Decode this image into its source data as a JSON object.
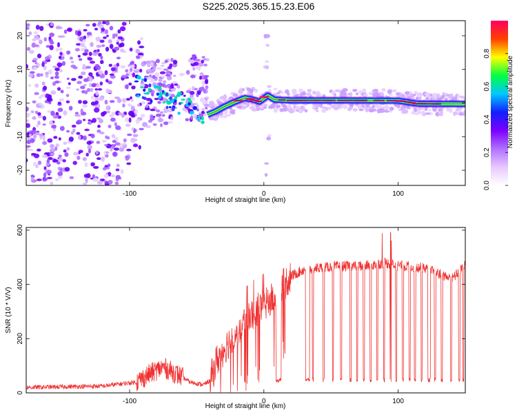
{
  "title": "S225.2025.365.15.23.E06",
  "chart_data": [
    {
      "type": "heatmap",
      "name": "spectrogram",
      "xlabel": "Height of straight line (km)",
      "ylabel": "Frequency (Hz)",
      "xlim": [
        -177,
        150
      ],
      "ylim": [
        -24.5,
        24.5
      ],
      "xticks": [
        -100,
        0,
        100
      ],
      "yticks": [
        -20,
        -10,
        0,
        10,
        20
      ],
      "ridge": [
        [
          -42,
          -3.5
        ],
        [
          -36,
          -2.5
        ],
        [
          -30,
          -1.2
        ],
        [
          -22,
          0.3
        ],
        [
          -14,
          1.5
        ],
        [
          -8,
          1.0
        ],
        [
          -3,
          0.4
        ],
        [
          0,
          1.4
        ],
        [
          3,
          2.2
        ],
        [
          8,
          1.0
        ],
        [
          20,
          0.8
        ],
        [
          60,
          0.8
        ],
        [
          100,
          0.7
        ],
        [
          108,
          0.2
        ],
        [
          115,
          -0.2
        ],
        [
          150,
          -0.3
        ]
      ],
      "colorbar": {
        "label": "Normalized spectral amplitude",
        "range": [
          0,
          1
        ],
        "ticks": [
          "0.0",
          "0.2",
          "0.4",
          "0.6",
          "0.8"
        ],
        "colors": [
          "#ffffff",
          "#e8c8ff",
          "#b070ff",
          "#7a00ff",
          "#1020ff",
          "#00c8ff",
          "#00ff40",
          "#ffff00",
          "#ff4000",
          "#ff0060"
        ]
      }
    },
    {
      "type": "line",
      "name": "snr",
      "xlabel": "Height of straight line (km)",
      "ylabel": "SNR (10 * V/V)",
      "xlim": [
        -177,
        150
      ],
      "ylim": [
        0,
        610
      ],
      "xticks": [
        -100,
        0,
        100
      ],
      "yticks": [
        0,
        200,
        400,
        600
      ],
      "color": "#f03030",
      "envelope": [
        [
          -177,
          20
        ],
        [
          -120,
          25
        ],
        [
          -95,
          40
        ],
        [
          -85,
          70
        ],
        [
          -75,
          95
        ],
        [
          -65,
          70
        ],
        [
          -55,
          40
        ],
        [
          -45,
          30
        ],
        [
          -40,
          45
        ],
        [
          -35,
          120
        ],
        [
          -30,
          160
        ],
        [
          -20,
          230
        ],
        [
          -10,
          290
        ],
        [
          0,
          320
        ],
        [
          5,
          340
        ],
        [
          10,
          360
        ],
        [
          15,
          400
        ],
        [
          20,
          430
        ],
        [
          30,
          455
        ],
        [
          50,
          465
        ],
        [
          80,
          470
        ],
        [
          90,
          480
        ],
        [
          100,
          470
        ],
        [
          120,
          460
        ],
        [
          130,
          440
        ],
        [
          140,
          420
        ],
        [
          150,
          470
        ]
      ],
      "dropouts": [
        [
          9,
          11
        ],
        [
          11,
          13
        ],
        [
          31,
          34
        ],
        [
          36,
          37
        ],
        [
          44,
          45
        ],
        [
          51,
          52
        ],
        [
          57,
          58
        ],
        [
          64,
          65
        ],
        [
          69,
          70
        ],
        [
          74,
          75
        ],
        [
          79,
          80
        ],
        [
          84,
          85
        ],
        [
          89,
          90
        ],
        [
          94,
          95
        ],
        [
          98,
          99
        ],
        [
          103,
          104
        ],
        [
          108,
          109
        ],
        [
          112,
          113
        ],
        [
          117,
          118
        ],
        [
          122,
          124
        ],
        [
          127,
          128
        ],
        [
          132,
          133
        ],
        [
          139,
          140
        ],
        [
          145,
          146
        ],
        [
          148,
          149
        ]
      ]
    }
  ]
}
